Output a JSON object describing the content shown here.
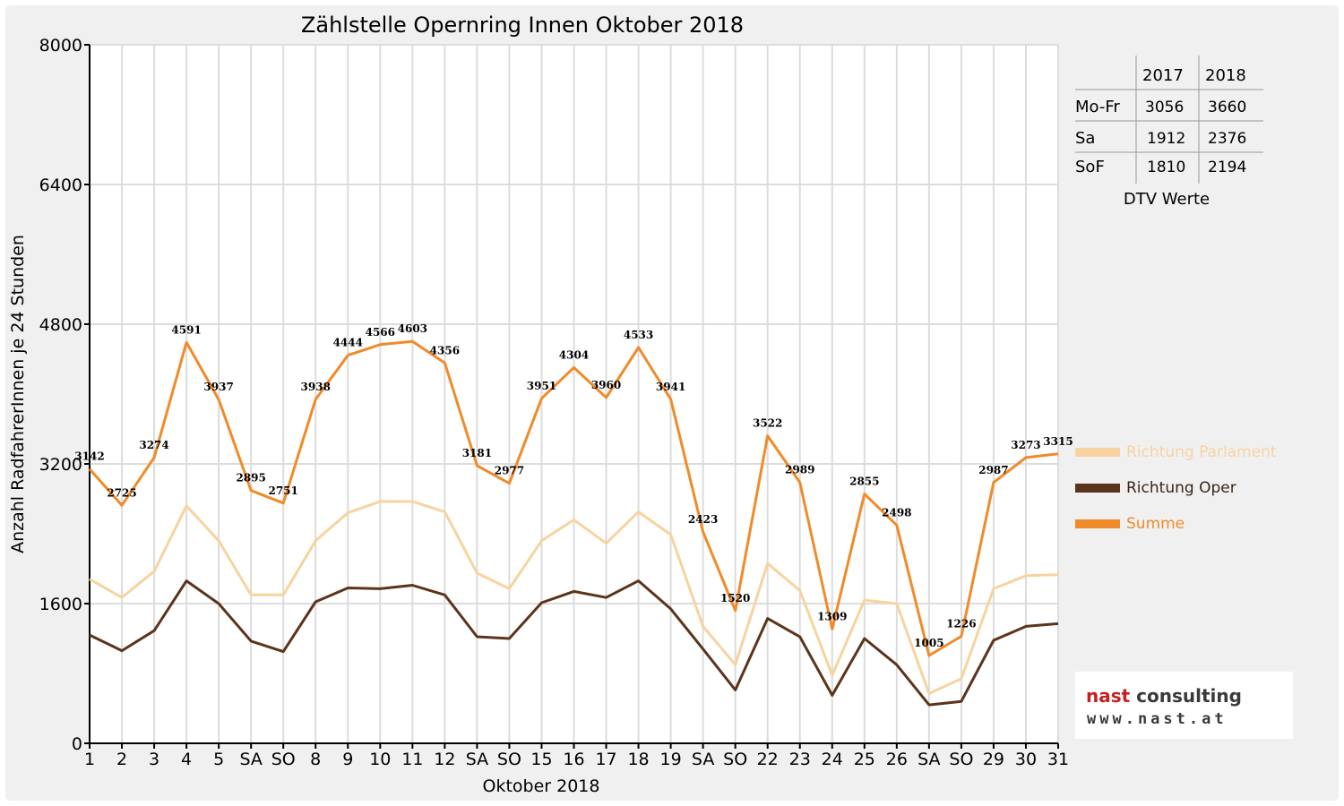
{
  "colors": {
    "richtung_parlament": "#f7d3a0",
    "richtung_oper": "#5c341c",
    "summe": "#f18a28",
    "weekend_red": "#e00000",
    "logo_red": "#c62020"
  },
  "dtv_table": {
    "headers": [
      "2017",
      "2018"
    ],
    "rows": [
      {
        "label": "Mo-Fr",
        "v2017": "3056",
        "v2018": "3660"
      },
      {
        "label": "Sa",
        "v2017": "1912",
        "v2018": "2376"
      },
      {
        "label": "SoF",
        "v2017": "1810",
        "v2018": "2194"
      }
    ],
    "caption": "DTV Werte"
  },
  "logo": {
    "main_red": "nast",
    "main_dark": " consulting",
    "sub": "www.nast.at"
  },
  "chart_data": {
    "type": "line",
    "title": "Zählstelle Opernring Innen Oktober 2018",
    "xlabel": "Oktober 2018",
    "ylabel": "Anzahl RadfahrerInnen je 24 Stunden",
    "ylim": [
      0,
      8000
    ],
    "yticks": [
      "0",
      "1600",
      "3200",
      "4800",
      "6400",
      "8000"
    ],
    "grid": true,
    "legend_position": "right",
    "categories": [
      "1",
      "2",
      "3",
      "4",
      "5",
      "SA",
      "SO",
      "8",
      "9",
      "10",
      "11",
      "12",
      "SA",
      "SO",
      "15",
      "16",
      "17",
      "18",
      "19",
      "SA",
      "SO",
      "22",
      "23",
      "24",
      "25",
      "26",
      "SA",
      "SO",
      "29",
      "30",
      "31"
    ],
    "red_categories": [
      6,
      13,
      20,
      25,
      27
    ],
    "series": [
      {
        "name": "Richtung Parlament",
        "values": [
          1880,
          1670,
          1970,
          2720,
          2320,
          1700,
          1700,
          2320,
          2640,
          2770,
          2770,
          2650,
          1950,
          1770,
          2320,
          2560,
          2290,
          2650,
          2390,
          1340,
          900,
          2060,
          1750,
          780,
          1640,
          1600,
          570,
          740,
          1770,
          1920,
          1930
        ]
      },
      {
        "name": "Richtung Oper",
        "values": [
          1240,
          1060,
          1290,
          1860,
          1600,
          1170,
          1050,
          1620,
          1780,
          1770,
          1810,
          1700,
          1220,
          1200,
          1610,
          1740,
          1670,
          1860,
          1540,
          1080,
          610,
          1430,
          1220,
          550,
          1200,
          900,
          440,
          480,
          1180,
          1340,
          1370
        ]
      },
      {
        "name": "Summe",
        "values": [
          3142,
          2725,
          3274,
          4591,
          3937,
          2895,
          2751,
          3938,
          4444,
          4566,
          4603,
          4356,
          3181,
          2977,
          3951,
          4304,
          3960,
          4533,
          3941,
          2423,
          1520,
          3522,
          2989,
          1309,
          2855,
          2498,
          1005,
          1226,
          2987,
          3273,
          3315
        ]
      }
    ],
    "data_labels": [
      "3142",
      "2725",
      "3274",
      "4591",
      "3937",
      "2895",
      "2751",
      "3938",
      "4444",
      "4566",
      "4603",
      "4356",
      "3181",
      "2977",
      "3951",
      "4304",
      "3960",
      "4533",
      "3941",
      "2423",
      "1520",
      "3522",
      "2989",
      "1309",
      "2855",
      "2498",
      "1005",
      "1226",
      "2987",
      "3273",
      "3315"
    ]
  }
}
